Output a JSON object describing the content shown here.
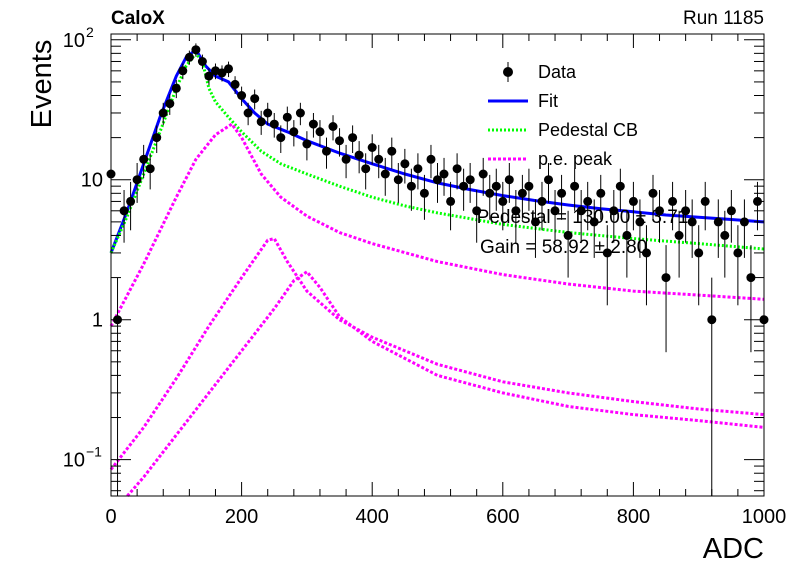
{
  "header": {
    "left_label": "CaloX",
    "right_label": "Run 1185"
  },
  "colors": {
    "data": "#000000",
    "fit": "#0000ff",
    "pedestal": "#00ff00",
    "pe_peak": "#ff00ff"
  },
  "chart_data": {
    "type": "scatter",
    "xlabel": "ADC",
    "ylabel": "Events",
    "xlim": [
      0,
      1000
    ],
    "ylim": [
      0.055,
      110
    ],
    "y_scale": "log",
    "grid": false,
    "legend_position": "top-right",
    "x_ticks": [
      {
        "value": 0,
        "label": "0"
      },
      {
        "value": 200,
        "label": "200"
      },
      {
        "value": 400,
        "label": "400"
      },
      {
        "value": 600,
        "label": "600"
      },
      {
        "value": 800,
        "label": "800"
      },
      {
        "value": 1000,
        "label": "1000"
      }
    ],
    "y_ticks": [
      {
        "value": 0.1,
        "base": "10",
        "exp": "−1"
      },
      {
        "value": 1,
        "base": "1",
        "exp": ""
      },
      {
        "value": 10,
        "base": "10",
        "exp": ""
      },
      {
        "value": 100,
        "base": "10",
        "exp": "2"
      }
    ],
    "legend": [
      {
        "label": "Data",
        "style": "marker"
      },
      {
        "label": "Fit",
        "style": "line"
      },
      {
        "label": "Pedestal CB",
        "style": "dotted-green"
      },
      {
        "label": "p.e. peak",
        "style": "dotted-magenta"
      }
    ],
    "annotations": [
      {
        "text": "Pedestal = 130.00 ± 3.71",
        "x": 560,
        "y": 5.4
      },
      {
        "text": "Gain = 58.92 ± 2.80",
        "x": 565,
        "y": 3.3
      }
    ],
    "series": [
      {
        "name": "Data",
        "kind": "points",
        "x": [
          0,
          10,
          20,
          30,
          40,
          50,
          60,
          70,
          80,
          90,
          100,
          110,
          120,
          130,
          140,
          150,
          160,
          170,
          180,
          190,
          200,
          210,
          220,
          230,
          240,
          250,
          260,
          270,
          280,
          290,
          300,
          310,
          320,
          330,
          340,
          350,
          360,
          370,
          380,
          390,
          400,
          410,
          420,
          430,
          440,
          450,
          460,
          470,
          480,
          490,
          500,
          510,
          520,
          530,
          540,
          550,
          560,
          570,
          580,
          590,
          600,
          610,
          620,
          630,
          640,
          650,
          660,
          670,
          680,
          690,
          700,
          710,
          720,
          730,
          740,
          750,
          760,
          770,
          780,
          790,
          800,
          810,
          820,
          830,
          840,
          850,
          860,
          870,
          880,
          890,
          900,
          910,
          920,
          930,
          940,
          950,
          960,
          970,
          980,
          990,
          1000
        ],
        "y": [
          11,
          1,
          6,
          7,
          10,
          14,
          12,
          20,
          30,
          35,
          45,
          60,
          75,
          85,
          70,
          55,
          60,
          58,
          62,
          48,
          40,
          30,
          38,
          26,
          30,
          25,
          20,
          28,
          22,
          30,
          18,
          25,
          22,
          16,
          24,
          19,
          14,
          20,
          15,
          12,
          17,
          14,
          11,
          16,
          10,
          13,
          9,
          12,
          8,
          14,
          10,
          11,
          7,
          12,
          9,
          10,
          6,
          11,
          8,
          9,
          7,
          10,
          6,
          8,
          9,
          5,
          7,
          10,
          6,
          8,
          4,
          9,
          6,
          7,
          5,
          8,
          3,
          6,
          9,
          4,
          7,
          5,
          3,
          8,
          6,
          2,
          7,
          4,
          6,
          5,
          3,
          7,
          1,
          5,
          4,
          6,
          3,
          5,
          2,
          7,
          1
        ]
      },
      {
        "name": "Fit",
        "kind": "line",
        "x": [
          0,
          25,
          50,
          75,
          100,
          115,
          130,
          145,
          160,
          180,
          200,
          220,
          240,
          270,
          300,
          350,
          400,
          450,
          500,
          550,
          600,
          650,
          700,
          750,
          800,
          850,
          900,
          950,
          1000
        ],
        "y": [
          3,
          6,
          13,
          28,
          55,
          75,
          85,
          65,
          55,
          50,
          38,
          30,
          25,
          22,
          19,
          15.5,
          13,
          11,
          9.5,
          8.5,
          7.7,
          7.1,
          6.6,
          6.2,
          5.9,
          5.6,
          5.4,
          5.2,
          5
        ]
      },
      {
        "name": "Pedestal CB",
        "kind": "dotted",
        "x": [
          0,
          25,
          50,
          75,
          100,
          115,
          130,
          140,
          150,
          160,
          180,
          200,
          230,
          260,
          300,
          350,
          400,
          450,
          500,
          600,
          700,
          800,
          900,
          1000
        ],
        "y": [
          3,
          5.5,
          11,
          22,
          45,
          65,
          80,
          70,
          45,
          36,
          28,
          22,
          16,
          13,
          11,
          9,
          7.5,
          6.5,
          5.8,
          4.8,
          4.2,
          3.8,
          3.5,
          3.2
        ]
      },
      {
        "name": "p.e. peak",
        "kind": "dotted",
        "x": [
          0,
          50,
          100,
          130,
          160,
          185,
          200,
          230,
          260,
          300,
          350,
          400,
          500,
          600,
          700,
          800,
          900,
          1000
        ],
        "y": [
          0.9,
          2.5,
          7.5,
          14,
          21,
          25,
          20,
          11,
          7.5,
          5.5,
          4.2,
          3.5,
          2.6,
          2.1,
          1.8,
          1.6,
          1.5,
          1.4
        ]
      },
      {
        "name": "p.e. peak",
        "kind": "dotted",
        "x": [
          0,
          50,
          100,
          150,
          200,
          240,
          250,
          270,
          300,
          350,
          400,
          500,
          600,
          700,
          800,
          900,
          1000
        ],
        "y": [
          0.085,
          0.17,
          0.38,
          0.9,
          2,
          3.7,
          3.8,
          2.6,
          1.6,
          1.0,
          0.75,
          0.48,
          0.36,
          0.3,
          0.26,
          0.23,
          0.21
        ]
      },
      {
        "name": "p.e. peak",
        "kind": "dotted",
        "x": [
          25,
          50,
          100,
          150,
          200,
          250,
          280,
          300,
          320,
          350,
          400,
          500,
          600,
          700,
          800,
          900,
          1000
        ],
        "y": [
          0.055,
          0.075,
          0.15,
          0.3,
          0.6,
          1.2,
          1.9,
          2.2,
          1.7,
          1.05,
          0.7,
          0.4,
          0.3,
          0.24,
          0.21,
          0.19,
          0.17
        ]
      }
    ]
  }
}
